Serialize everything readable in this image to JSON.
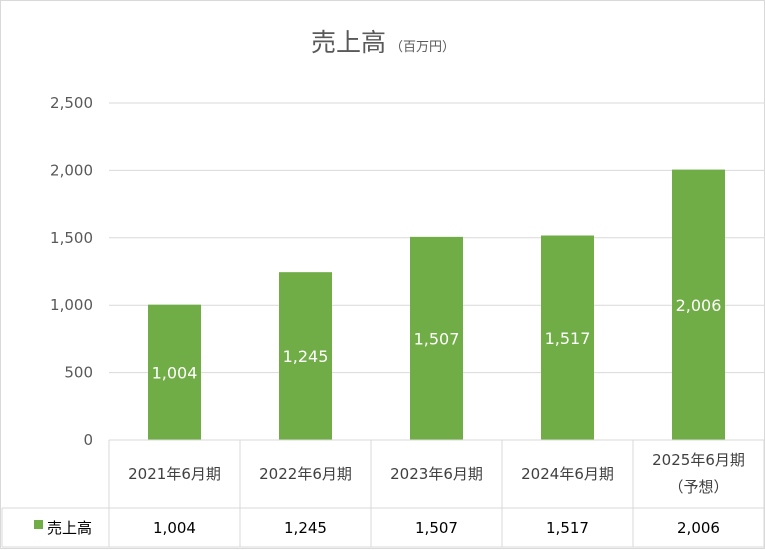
{
  "chart_data": {
    "type": "bar",
    "title": "売上高",
    "subtitle": "（百万円）",
    "categories": [
      {
        "line1": "2021年6月期",
        "line2": ""
      },
      {
        "line1": "2022年6月期",
        "line2": ""
      },
      {
        "line1": "2023年6月期",
        "line2": ""
      },
      {
        "line1": "2024年6月期",
        "line2": ""
      },
      {
        "line1": "2025年6月期",
        "line2": "（予想）"
      }
    ],
    "series": [
      {
        "name": "売上高",
        "values": [
          1004,
          1245,
          1507,
          1517,
          2006
        ],
        "value_labels": [
          "1,004",
          "1,245",
          "1,507",
          "1,517",
          "2,006"
        ]
      }
    ],
    "ylim": [
      0,
      2500
    ],
    "yticks": [
      {
        "value": 0,
        "label": "0"
      },
      {
        "value": 500,
        "label": "500"
      },
      {
        "value": 1000,
        "label": "1,000"
      },
      {
        "value": 1500,
        "label": "1,500"
      },
      {
        "value": 2000,
        "label": "2,000"
      },
      {
        "value": 2500,
        "label": "2,500"
      }
    ],
    "grid": true,
    "legend": "data-table",
    "colors": {
      "bar": "#70ad47",
      "grid": "#d9d9d9",
      "text": "#595959"
    }
  }
}
